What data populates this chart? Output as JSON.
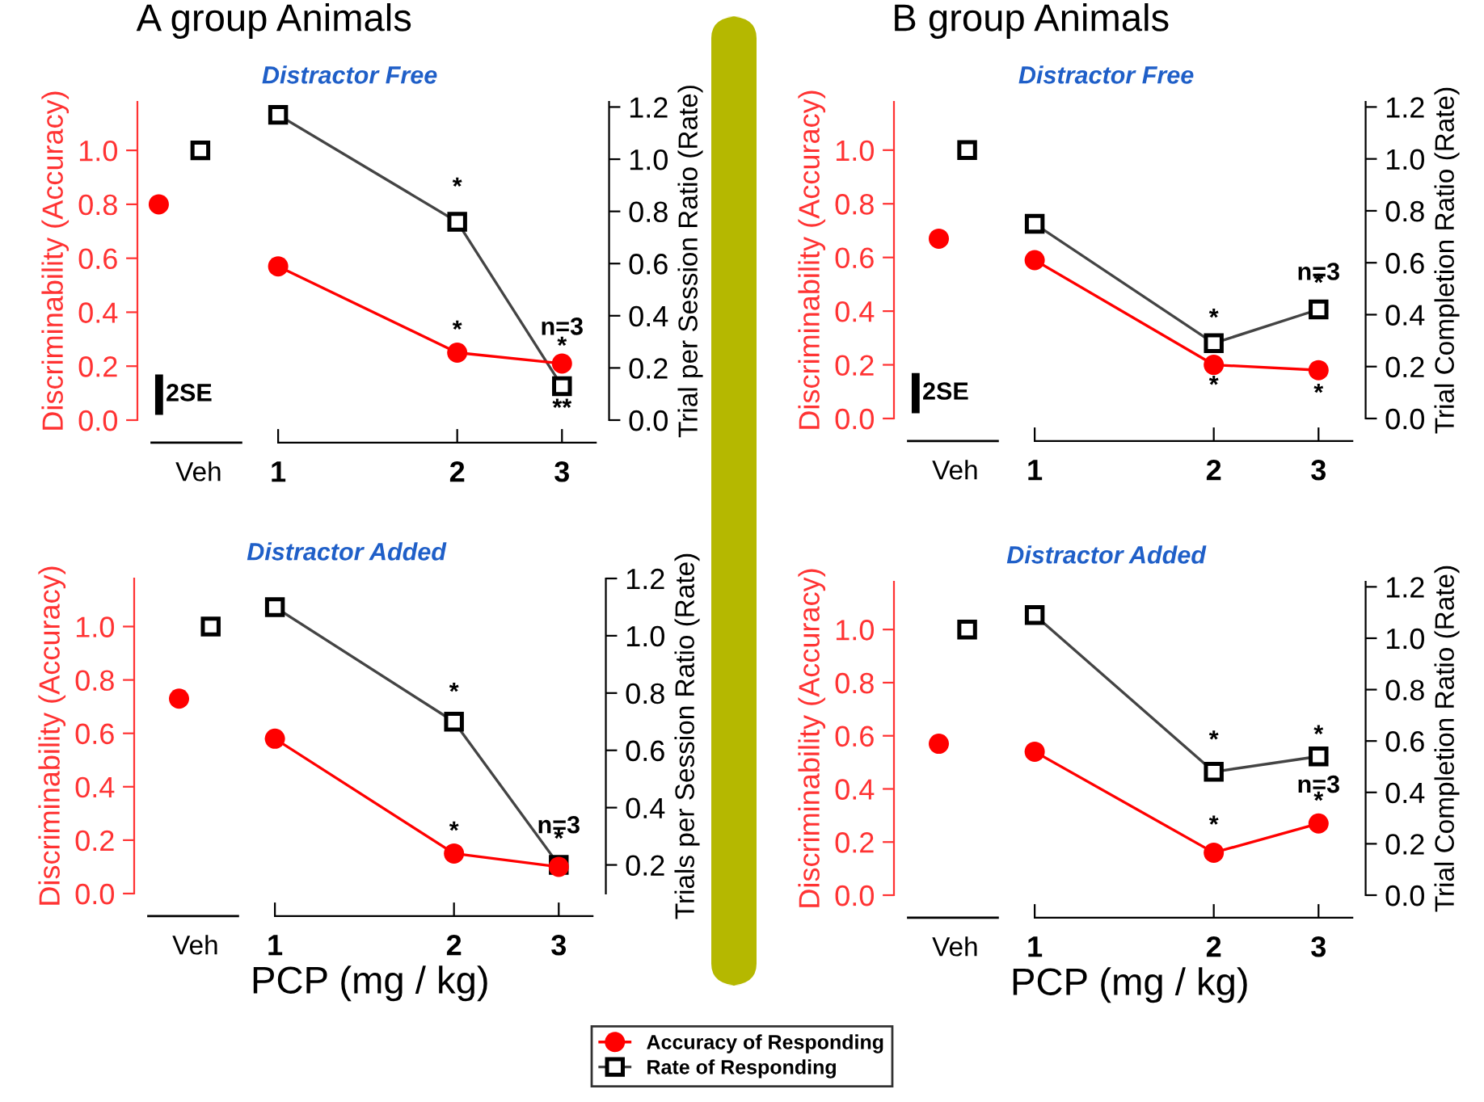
{
  "chart_data": [
    {
      "type": "line",
      "title": "A group Animals",
      "subtitle": "Distractor Free",
      "log": "x",
      "xlim": [
        0.58,
        3.6
      ],
      "xticks": [
        1,
        2,
        3
      ],
      "ylabel": "Discriminability (Accuracy)",
      "ylim": [
        0,
        1.18
      ],
      "yticks": [
        {
          "value": 0,
          "label": "0.0"
        },
        {
          "value": 0.2,
          "label": "0.2"
        },
        {
          "value": 0.4,
          "label": "0.4"
        },
        {
          "value": 0.6,
          "label": "0.6"
        },
        {
          "value": 0.8,
          "label": "0.8"
        },
        {
          "value": 1.0,
          "label": "1.0"
        }
      ],
      "y2label": "Trial per Session Ratio (Rate)",
      "y2lim": [
        0,
        1.22
      ],
      "y2ticks": [
        {
          "value": 0,
          "label": "0.0"
        },
        {
          "value": 0.2,
          "label": "0.2"
        },
        {
          "value": 0.4,
          "label": "0.4"
        },
        {
          "value": 0.6,
          "label": "0.6"
        },
        {
          "value": 0.8,
          "label": "0.8"
        },
        {
          "value": 1.0,
          "label": "1.0"
        },
        {
          "value": 1.2,
          "label": "1.2"
        }
      ],
      "annotations": [
        "2SE",
        "*",
        "*",
        "n=3",
        "*",
        "**",
        "Veh"
      ],
      "series": [
        {
          "color": "#ff0000",
          "marker": "circle",
          "x": [
            1,
            2,
            3
          ],
          "values": [
            0.57,
            0.25,
            0.21
          ]
        },
        {
          "color": "#000000",
          "marker": "square",
          "axis": "y2",
          "x": [
            1,
            2,
            3
          ],
          "values": [
            1.17,
            0.76,
            0.13
          ]
        },
        {
          "type": "scatter",
          "color": "#ff0000",
          "marker": "circle",
          "x": [
            0.63
          ],
          "values": [
            0.8
          ]
        },
        {
          "type": "scatter",
          "color": "#000000",
          "marker": "square",
          "x": [
            0.74
          ],
          "values": [
            1.0
          ]
        }
      ]
    },
    {
      "type": "line",
      "title": "B group Animals",
      "subtitle": "Distractor Free",
      "log": "x",
      "xlim": [
        0.58,
        3.6
      ],
      "xticks": [
        1,
        2,
        3
      ],
      "ylabel": "Discriminability (Accuracy)",
      "ylim": [
        0,
        1.18
      ],
      "yticks": [
        {
          "value": 0,
          "label": "0.0"
        },
        {
          "value": 0.2,
          "label": "0.2"
        },
        {
          "value": 0.4,
          "label": "0.4"
        },
        {
          "value": 0.6,
          "label": "0.6"
        },
        {
          "value": 0.8,
          "label": "0.8"
        },
        {
          "value": 1.0,
          "label": "1.0"
        }
      ],
      "y2label": "Trial Completion Ratio (Rate)",
      "y2lim": [
        0,
        1.22
      ],
      "y2ticks": [
        {
          "value": 0,
          "label": "0.0"
        },
        {
          "value": 0.2,
          "label": "0.2"
        },
        {
          "value": 0.4,
          "label": "0.4"
        },
        {
          "value": 0.6,
          "label": "0.6"
        },
        {
          "value": 0.8,
          "label": "0.8"
        },
        {
          "value": 1.0,
          "label": "1.0"
        },
        {
          "value": 1.2,
          "label": "1.2"
        }
      ],
      "annotations": [
        "2SE",
        "*",
        "*",
        "n=3",
        "*",
        "*",
        "Veh"
      ],
      "series": [
        {
          "color": "#ff0000",
          "marker": "circle",
          "x": [
            1,
            2,
            3
          ],
          "values": [
            0.59,
            0.2,
            0.18
          ]
        },
        {
          "color": "#000000",
          "marker": "square",
          "axis": "y2",
          "x": [
            1,
            2,
            3
          ],
          "values": [
            0.75,
            0.29,
            0.42
          ]
        },
        {
          "type": "scatter",
          "color": "#ff0000",
          "marker": "circle",
          "x": [
            0.69
          ],
          "values": [
            0.67
          ]
        },
        {
          "type": "scatter",
          "color": "#000000",
          "marker": "square",
          "x": [
            0.77
          ],
          "values": [
            1.0
          ]
        }
      ]
    },
    {
      "type": "line",
      "subtitle": "Distractor Added",
      "xlabel": "PCP (mg / kg)",
      "log": "x",
      "xlim": [
        0.58,
        3.6
      ],
      "xticks": [
        1,
        2,
        3
      ],
      "ylabel": "Discriminability (Accuracy)",
      "ylim": [
        0,
        1.18
      ],
      "yticks": [
        {
          "value": 0,
          "label": "0.0"
        },
        {
          "value": 0.2,
          "label": "0.2"
        },
        {
          "value": 0.4,
          "label": "0.4"
        },
        {
          "value": 0.6,
          "label": "0.6"
        },
        {
          "value": 0.8,
          "label": "0.8"
        },
        {
          "value": 1.0,
          "label": "1.0"
        }
      ],
      "y2label": "Trials per Session Ratio (Rate)",
      "y2lim": [
        0.1,
        1.2
      ],
      "y2ticks": [
        {
          "value": 0.2,
          "label": "0.2"
        },
        {
          "value": 0.4,
          "label": "0.4"
        },
        {
          "value": 0.6,
          "label": "0.6"
        },
        {
          "value": 0.8,
          "label": "0.8"
        },
        {
          "value": 1.0,
          "label": "1.0"
        },
        {
          "value": 1.2,
          "label": "1.2"
        }
      ],
      "annotations": [
        "*",
        "*",
        "n=3",
        "*",
        "Veh"
      ],
      "series": [
        {
          "color": "#ff0000",
          "marker": "circle",
          "x": [
            1,
            2,
            3
          ],
          "values": [
            0.58,
            0.15,
            0.1
          ]
        },
        {
          "color": "#000000",
          "marker": "square",
          "axis": "y2",
          "x": [
            1,
            2,
            3
          ],
          "values": [
            1.1,
            0.7,
            0.2
          ]
        },
        {
          "type": "scatter",
          "color": "#ff0000",
          "marker": "circle",
          "x": [
            0.69
          ],
          "values": [
            0.73
          ]
        },
        {
          "type": "scatter",
          "color": "#000000",
          "marker": "square",
          "x": [
            0.78
          ],
          "values": [
            1.0
          ]
        }
      ]
    },
    {
      "type": "line",
      "subtitle": "Distractor Added",
      "xlabel": "PCP (mg / kg)",
      "log": "x",
      "xlim": [
        0.58,
        3.6
      ],
      "xticks": [
        1,
        2,
        3
      ],
      "ylabel": "Discriminability (Accuracy)",
      "ylim": [
        0,
        1.18
      ],
      "yticks": [
        {
          "value": 0,
          "label": "0.0"
        },
        {
          "value": 0.2,
          "label": "0.2"
        },
        {
          "value": 0.4,
          "label": "0.4"
        },
        {
          "value": 0.6,
          "label": "0.6"
        },
        {
          "value": 0.8,
          "label": "0.8"
        },
        {
          "value": 1.0,
          "label": "1.0"
        }
      ],
      "y2label": "Trial Completion Ratio (Rate)",
      "y2lim": [
        0,
        1.22
      ],
      "y2ticks": [
        {
          "value": 0,
          "label": "0.0"
        },
        {
          "value": 0.2,
          "label": "0.2"
        },
        {
          "value": 0.4,
          "label": "0.4"
        },
        {
          "value": 0.6,
          "label": "0.6"
        },
        {
          "value": 0.8,
          "label": "0.8"
        },
        {
          "value": 1.0,
          "label": "1.0"
        },
        {
          "value": 1.2,
          "label": "1.2"
        }
      ],
      "legend": "bottom",
      "annotations": [
        "*",
        "*",
        "*",
        "n=3",
        "*",
        "Veh"
      ],
      "series": [
        {
          "name": "Accuracy of Responding",
          "color": "#ff0000",
          "marker": "circle",
          "x": [
            1,
            2,
            3
          ],
          "values": [
            0.54,
            0.16,
            0.27
          ]
        },
        {
          "name": "Rate of Responding",
          "color": "#000000",
          "marker": "square",
          "axis": "y2",
          "x": [
            1,
            2,
            3
          ],
          "values": [
            1.09,
            0.48,
            0.54
          ]
        },
        {
          "type": "scatter",
          "color": "#ff0000",
          "marker": "circle",
          "x": [
            0.69
          ],
          "values": [
            0.57
          ]
        },
        {
          "type": "scatter",
          "color": "#000000",
          "marker": "square",
          "x": [
            0.77
          ],
          "values": [
            1.0
          ]
        }
      ]
    }
  ]
}
